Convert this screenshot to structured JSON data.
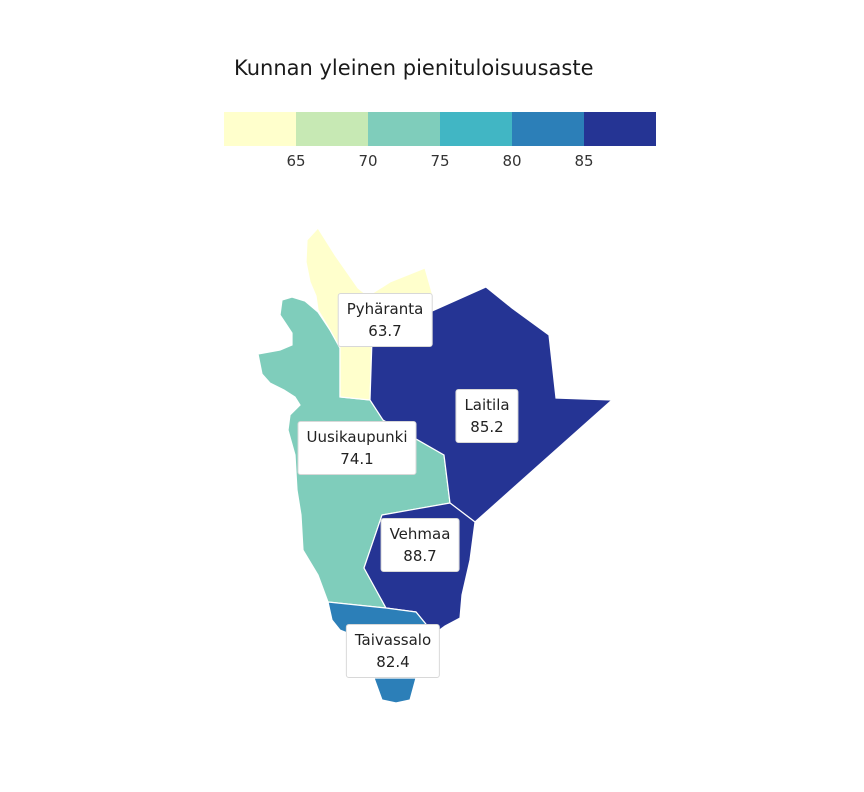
{
  "title": "Kunnan yleinen pienituloisuusaste",
  "legend": {
    "colors": [
      "#ffffcc",
      "#c7e9b4",
      "#7fcdbb",
      "#41b6c4",
      "#2c7fb8",
      "#253494"
    ],
    "ticks": [
      "65",
      "70",
      "75",
      "80",
      "85"
    ]
  },
  "regions": [
    {
      "name": "Pyhäranta",
      "value": "63.7",
      "color": "#ffffcc"
    },
    {
      "name": "Laitila",
      "value": "85.2",
      "color": "#253494"
    },
    {
      "name": "Uusikaupunki",
      "value": "74.1",
      "color": "#7fcdbb"
    },
    {
      "name": "Vehmaa",
      "value": "88.7",
      "color": "#253494"
    },
    {
      "name": "Taivassalo",
      "value": "82.4",
      "color": "#2c7fb8"
    }
  ]
}
